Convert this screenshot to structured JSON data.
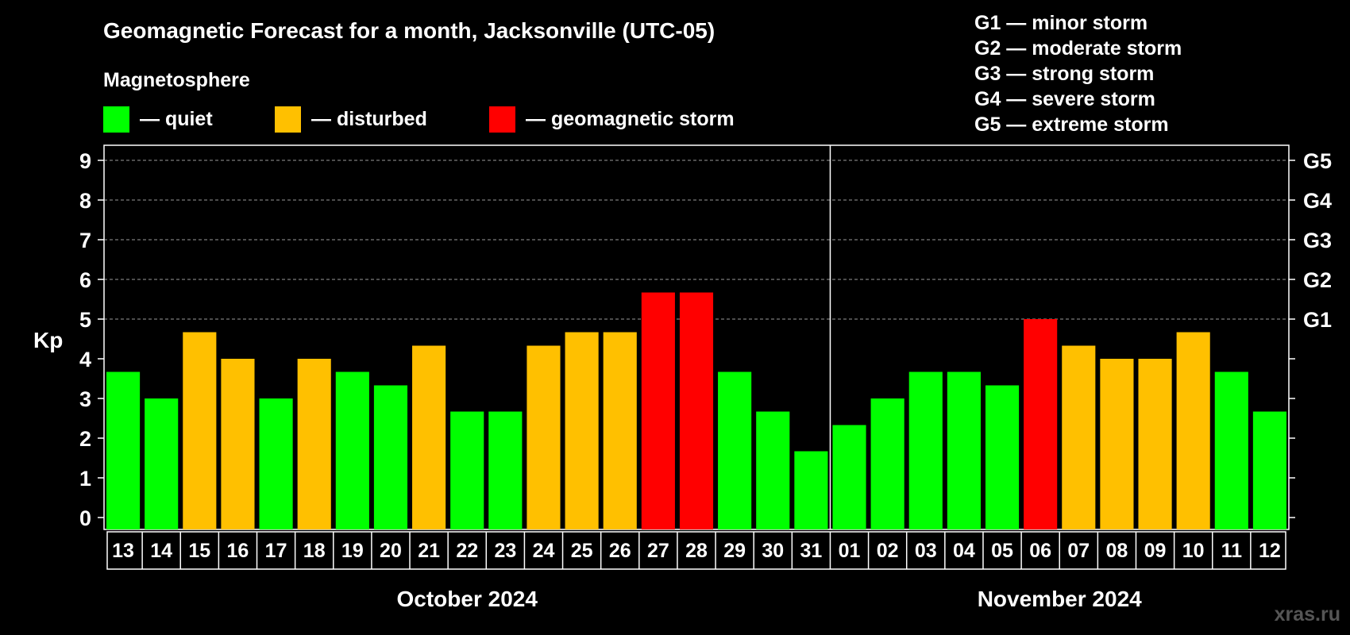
{
  "chart_data": {
    "type": "bar",
    "title": "Geomagnetic Forecast for a month, Jacksonville (UTC-05)",
    "ylabel": "Kp",
    "ylim": [
      0,
      9
    ],
    "yticks": [
      "0",
      "1",
      "2",
      "3",
      "4",
      "5",
      "6",
      "7",
      "8",
      "9"
    ],
    "right_axis_labels": [
      {
        "kp": 5,
        "label": "G1"
      },
      {
        "kp": 6,
        "label": "G2"
      },
      {
        "kp": 7,
        "label": "G3"
      },
      {
        "kp": 8,
        "label": "G4"
      },
      {
        "kp": 9,
        "label": "G5"
      }
    ],
    "grid": "dashed horizontal at Kp 5-9",
    "legend": {
      "heading": "Magnetosphere",
      "items": [
        {
          "label": "— quiet",
          "color": "#00FF00"
        },
        {
          "label": "— disturbed",
          "color": "#FFC000"
        },
        {
          "label": "— geomagnetic storm",
          "color": "#FF0000"
        }
      ]
    },
    "storm_scale": [
      "G1 — minor storm",
      "G2 — moderate storm",
      "G3 — strong storm",
      "G4 — severe storm",
      "G5 — extreme storm"
    ],
    "months": [
      {
        "label": "October 2024",
        "days": 19
      },
      {
        "label": "November 2024",
        "days": 12
      }
    ],
    "categories": [
      "13",
      "14",
      "15",
      "16",
      "17",
      "18",
      "19",
      "20",
      "21",
      "22",
      "23",
      "24",
      "25",
      "26",
      "27",
      "28",
      "29",
      "30",
      "31",
      "01",
      "02",
      "03",
      "04",
      "05",
      "06",
      "07",
      "08",
      "09",
      "10",
      "11",
      "12"
    ],
    "values": [
      3.67,
      3.0,
      4.67,
      4.0,
      3.0,
      4.0,
      3.67,
      3.33,
      4.33,
      2.67,
      2.67,
      4.33,
      4.67,
      4.67,
      5.67,
      5.67,
      3.67,
      2.67,
      1.67,
      2.33,
      3.0,
      3.67,
      3.67,
      3.33,
      5.0,
      4.33,
      4.0,
      4.0,
      4.67,
      3.67,
      2.67
    ],
    "status": [
      "quiet",
      "quiet",
      "disturbed",
      "disturbed",
      "quiet",
      "disturbed",
      "quiet",
      "quiet",
      "disturbed",
      "quiet",
      "quiet",
      "disturbed",
      "disturbed",
      "disturbed",
      "storm",
      "storm",
      "quiet",
      "quiet",
      "quiet",
      "quiet",
      "quiet",
      "quiet",
      "quiet",
      "quiet",
      "storm",
      "disturbed",
      "disturbed",
      "disturbed",
      "disturbed",
      "quiet",
      "quiet"
    ],
    "colors": {
      "quiet": "#00FF00",
      "disturbed": "#FFC000",
      "storm": "#FF0000"
    }
  },
  "watermark": "xras.ru"
}
